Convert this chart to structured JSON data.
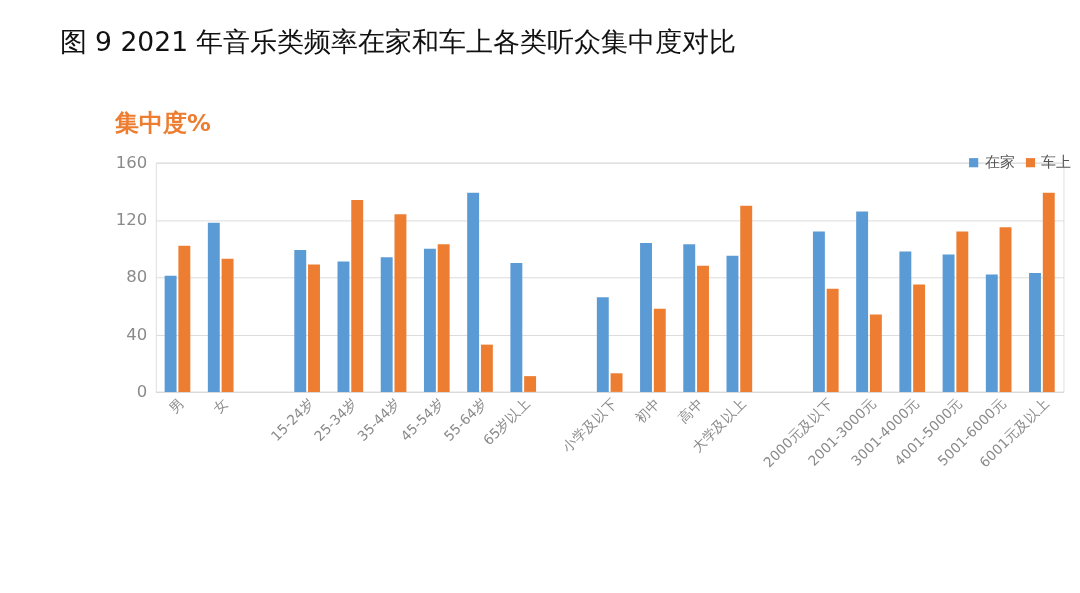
{
  "chart_data": {
    "type": "bar",
    "title": "图 9 2021 年音乐类频率在家和车上各类听众集中度对比",
    "ylabel": "集中度%",
    "categories": [
      "男",
      "女",
      null,
      "15-24岁",
      "25-34岁",
      "35-44岁",
      "45-54岁",
      "55-64岁",
      "65岁以上",
      null,
      "小学及以下",
      "初中",
      "高中",
      "大学及以上",
      null,
      "2000元及以下",
      "2001-3000元",
      "3001-4000元",
      "4001-5000元",
      "5001-6000元",
      "6001元及以上"
    ],
    "series": [
      {
        "name": "在家",
        "color": "#5b9bd5",
        "values": [
          81,
          118,
          null,
          99,
          91,
          94,
          100,
          139,
          90,
          null,
          66,
          104,
          103,
          95,
          null,
          112,
          126,
          98,
          96,
          82,
          83
        ]
      },
      {
        "name": "车上",
        "color": "#ed7d31",
        "values": [
          102,
          93,
          null,
          89,
          134,
          124,
          103,
          33,
          11,
          null,
          13,
          58,
          88,
          130,
          null,
          72,
          54,
          75,
          112,
          115,
          139
        ]
      }
    ],
    "ylim": [
      0,
      160
    ],
    "yticks": [
      0,
      40,
      80,
      120,
      160
    ],
    "grid": "y",
    "legend": "top right"
  }
}
